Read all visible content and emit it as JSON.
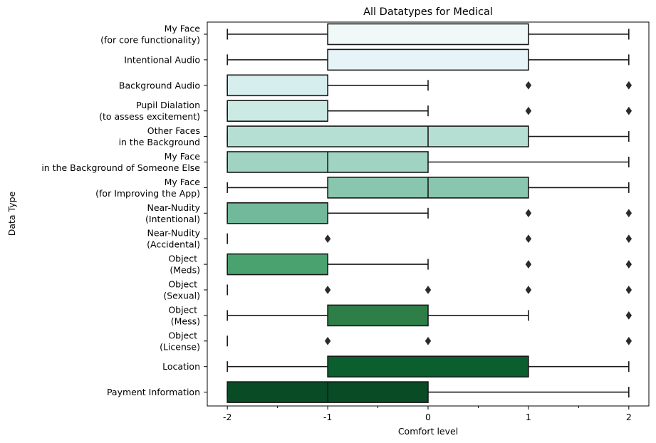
{
  "chart_data": {
    "type": "boxplot",
    "title": "All Datatypes for Medical",
    "xlabel": "Comfort level",
    "ylabel": "Data Type",
    "xlim": [
      -2.2,
      2.2
    ],
    "xticks": [
      -2,
      -1,
      0,
      1,
      2
    ],
    "xtick_labels": [
      "-2",
      "-1",
      "0",
      "1",
      "2"
    ],
    "minor_xticks": [
      -1.5,
      -0.5,
      0.5,
      1.5
    ],
    "grid": false,
    "categories": [
      {
        "label": [
          "My Face",
          "(for core functionality)"
        ],
        "whisker_low": -2,
        "q1": -1,
        "median": 1,
        "q3": 1,
        "whisker_high": 2,
        "outliers": [],
        "color": "#f0f9f8"
      },
      {
        "label": [
          "Intentional Audio"
        ],
        "whisker_low": -2,
        "q1": -1,
        "median": 1,
        "q3": 1,
        "whisker_high": 2,
        "outliers": [],
        "color": "#e6f4f8"
      },
      {
        "label": [
          "Background Audio"
        ],
        "whisker_low": -2,
        "q1": -2,
        "median": -1,
        "q3": -1,
        "whisker_high": 0,
        "outliers": [
          1,
          2
        ],
        "color": "#d7eeee"
      },
      {
        "label": [
          "Pupil Dialation",
          "(to assess excitement)"
        ],
        "whisker_low": -2,
        "q1": -2,
        "median": -1,
        "q3": -1,
        "whisker_high": 0,
        "outliers": [
          1,
          2
        ],
        "color": "#cbeae3"
      },
      {
        "label": [
          "Other Faces",
          "in the Background"
        ],
        "whisker_low": -2,
        "q1": -2,
        "median": 0,
        "q3": 1,
        "whisker_high": 2,
        "outliers": [],
        "color": "#b6dfd4"
      },
      {
        "label": [
          "My Face",
          "in the Background of Someone Else"
        ],
        "whisker_low": -2,
        "q1": -2,
        "median": -1,
        "q3": 0,
        "whisker_high": 2,
        "outliers": [],
        "color": "#a0d3c2"
      },
      {
        "label": [
          "My Face",
          "(for Improving the App)"
        ],
        "whisker_low": -2,
        "q1": -1,
        "median": 0,
        "q3": 1,
        "whisker_high": 2,
        "outliers": [],
        "color": "#88c6ae"
      },
      {
        "label": [
          "Near-Nudity",
          "(Intentional)"
        ],
        "whisker_low": -2,
        "q1": -2,
        "median": -1,
        "q3": -1,
        "whisker_high": 0,
        "outliers": [
          1,
          2
        ],
        "color": "#71b99a"
      },
      {
        "label": [
          "Near-Nudity",
          "(Accidental)"
        ],
        "whisker_low": -2,
        "q1": -2,
        "median": -2,
        "q3": -2,
        "whisker_high": -2,
        "outliers": [
          -1,
          1,
          2
        ],
        "color": "#5eb085"
      },
      {
        "label": [
          "Object ",
          "(Meds)"
        ],
        "whisker_low": -2,
        "q1": -2,
        "median": -1,
        "q3": -1,
        "whisker_high": 0,
        "outliers": [
          1,
          2
        ],
        "color": "#4aa26f"
      },
      {
        "label": [
          "Object ",
          "(Sexual)"
        ],
        "whisker_low": -2,
        "q1": -2,
        "median": -2,
        "q3": -2,
        "whisker_high": -2,
        "outliers": [
          -1,
          0,
          1,
          2
        ],
        "color": "#3a9158"
      },
      {
        "label": [
          "Object ",
          "(Mess)"
        ],
        "whisker_low": -2,
        "q1": -1,
        "median": -1,
        "q3": 0,
        "whisker_high": 1,
        "outliers": [
          2
        ],
        "color": "#2e7e47"
      },
      {
        "label": [
          "Object ",
          "(License)"
        ],
        "whisker_low": -2,
        "q1": -2,
        "median": -2,
        "q3": -2,
        "whisker_high": -2,
        "outliers": [
          -1,
          0,
          2
        ],
        "color": "#1f6e3a"
      },
      {
        "label": [
          "Location"
        ],
        "whisker_low": -2,
        "q1": -1,
        "median": -1,
        "q3": 1,
        "whisker_high": 2,
        "outliers": [],
        "color": "#0b5e2e"
      },
      {
        "label": [
          "Payment Information"
        ],
        "whisker_low": -2,
        "q1": -2,
        "median": -1,
        "q3": 0,
        "whisker_high": 2,
        "outliers": [],
        "color": "#084b24"
      }
    ]
  }
}
